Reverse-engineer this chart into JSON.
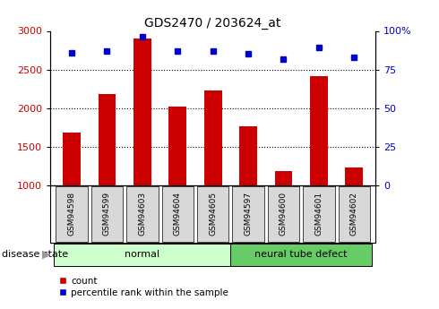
{
  "title": "GDS2470 / 203624_at",
  "samples": [
    "GSM94598",
    "GSM94599",
    "GSM94603",
    "GSM94604",
    "GSM94605",
    "GSM94597",
    "GSM94600",
    "GSM94601",
    "GSM94602"
  ],
  "counts": [
    1680,
    2180,
    2900,
    2020,
    2230,
    1760,
    1190,
    2420,
    1230
  ],
  "percentiles": [
    86,
    87,
    96,
    87,
    87,
    85,
    82,
    89,
    83
  ],
  "ylim_left": [
    1000,
    3000
  ],
  "ylim_right": [
    0,
    100
  ],
  "yticks_left": [
    1000,
    1500,
    2000,
    2500,
    3000
  ],
  "yticks_right": [
    0,
    25,
    50,
    75,
    100
  ],
  "ytick_right_labels": [
    "0",
    "25",
    "50",
    "75",
    "100%"
  ],
  "bar_color": "#cc0000",
  "dot_color": "#0000cc",
  "bar_bottom": 1000,
  "groups": [
    {
      "label": "normal",
      "start": 0,
      "end": 5,
      "color": "#ccffcc"
    },
    {
      "label": "neural tube defect",
      "start": 5,
      "end": 9,
      "color": "#66cc66"
    }
  ],
  "group_label": "disease state",
  "legend_items": [
    {
      "label": "count",
      "color": "#cc0000"
    },
    {
      "label": "percentile rank within the sample",
      "color": "#0000cc"
    }
  ],
  "tick_label_color_left": "#cc0000",
  "tick_label_color_right": "#0000cc",
  "bar_width": 0.5,
  "box_facecolor": "#d8d8d8",
  "grid_lines": [
    1500,
    2000,
    2500
  ]
}
